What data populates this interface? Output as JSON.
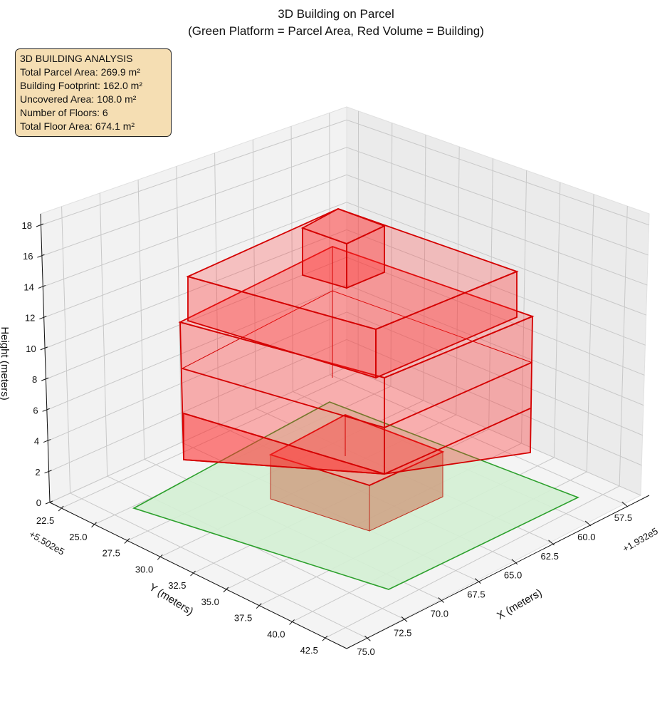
{
  "chart_data": {
    "type": "3d-bar",
    "title": "3D Building on Parcel",
    "subtitle": "(Green Platform = Parcel Area, Red Volume = Building)",
    "xlabel": "X (meters)",
    "ylabel": "Y (meters)",
    "zlabel": "Height (meters)",
    "x_offset": "+1.932e5",
    "y_offset": "+5.502e5",
    "x_ticks": [
      "57.5",
      "60.0",
      "62.5",
      "65.0",
      "67.5",
      "70.0",
      "72.5",
      "75.0"
    ],
    "y_ticks": [
      "22.5",
      "25.0",
      "27.5",
      "30.0",
      "32.5",
      "35.0",
      "37.5",
      "40.0",
      "42.5"
    ],
    "z_ticks": [
      "0",
      "2",
      "4",
      "6",
      "8",
      "10",
      "12",
      "14",
      "16",
      "18"
    ],
    "zlim": [
      0,
      18
    ],
    "series": [
      {
        "name": "Parcel Area",
        "color": "#2ca02c",
        "fill": "#d4f0d4"
      },
      {
        "name": "Building",
        "color": "#dd0000",
        "fill": "#ff3333"
      }
    ],
    "info_box": {
      "title": "3D BUILDING ANALYSIS",
      "lines": [
        "Total Parcel Area: 269.9 m²",
        "Building Footprint: 162.0 m²",
        "Uncovered Area: 108.0 m²",
        "Number of Floors: 6",
        "Total Floor Area: 674.1 m²"
      ]
    }
  }
}
